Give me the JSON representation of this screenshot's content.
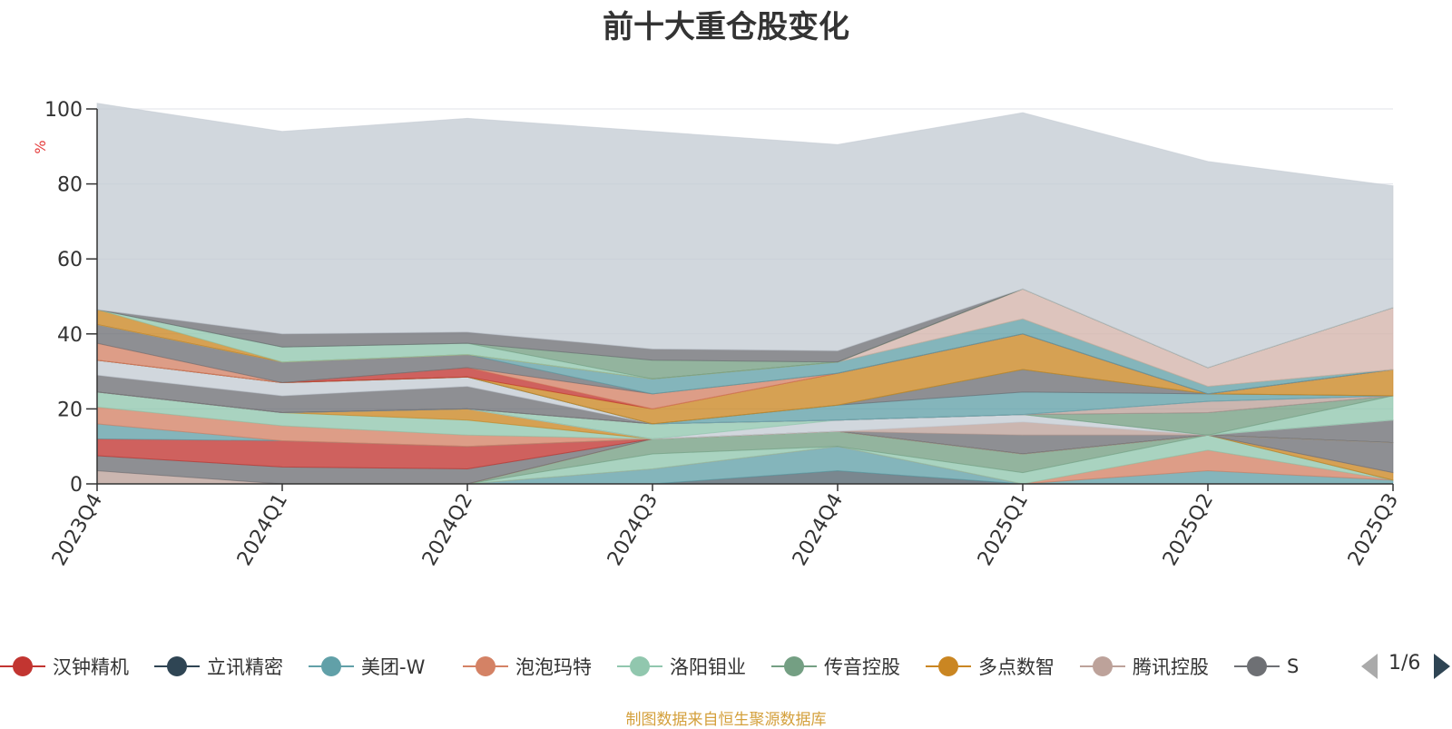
{
  "chart_data": {
    "type": "area",
    "title": "前十大重仓股变化",
    "ylabel": "%",
    "xlabel": "",
    "ylim": [
      0,
      100
    ],
    "yticks": [
      "0",
      "20",
      "40",
      "60",
      "80",
      "100"
    ],
    "categories": [
      "2023Q4",
      "2024Q1",
      "2024Q2",
      "2024Q3",
      "2024Q4",
      "2025Q1",
      "2025Q2",
      "2025Q3"
    ],
    "stacked": true,
    "grid": true,
    "legend_position": "bottom",
    "series": [
      {
        "name": "",
        "color": "#546570",
        "values": [
          0,
          0,
          0,
          0,
          3.5,
          0,
          0,
          0
        ]
      },
      {
        "name": "",
        "color": "#61a0a8",
        "values": [
          0,
          0,
          0,
          4,
          6.5,
          0,
          3.5,
          1
        ]
      },
      {
        "name": "",
        "color": "#d48265",
        "values": [
          0,
          0,
          0,
          0,
          0,
          0,
          5.5,
          0
        ]
      },
      {
        "name": "",
        "color": "#91c7ae",
        "values": [
          0,
          0,
          0,
          4,
          0,
          3,
          4,
          0
        ]
      },
      {
        "name": "",
        "color": "#749f83",
        "values": [
          0,
          0,
          0,
          4,
          4,
          5,
          0,
          0
        ]
      },
      {
        "name": "",
        "color": "#ca8622",
        "values": [
          0,
          0,
          0,
          0,
          0,
          0,
          0,
          2
        ]
      },
      {
        "name": "",
        "color": "#bda29a",
        "values": [
          3.5,
          0,
          0,
          0,
          0,
          0,
          0,
          0
        ]
      },
      {
        "name": "",
        "color": "#6e7074",
        "values": [
          4,
          4.5,
          4,
          0,
          0,
          0,
          0,
          8
        ]
      },
      {
        "name": "",
        "color": "#c23531",
        "values": [
          4.5,
          7,
          6,
          0,
          0,
          0,
          0,
          0
        ]
      },
      {
        "name": "",
        "color": "#61a0a8",
        "values": [
          4,
          0,
          0,
          0,
          0,
          0,
          0,
          0
        ]
      },
      {
        "name": "",
        "color": "#d48265",
        "values": [
          4.5,
          4,
          3,
          0,
          0,
          0,
          0,
          0
        ]
      },
      {
        "name": "",
        "color": "#91c7ae",
        "values": [
          4,
          3.5,
          4,
          0,
          0,
          0,
          0,
          0
        ]
      },
      {
        "name": "",
        "color": "#ca8622",
        "values": [
          0,
          0,
          3,
          0,
          0,
          0,
          0,
          0
        ]
      },
      {
        "name": "",
        "color": "#c4ccd3",
        "values": [
          0,
          0,
          0,
          0,
          0,
          0,
          0,
          0
        ]
      },
      {
        "name": "",
        "color": "#6e7074",
        "values": [
          0,
          0,
          0,
          0,
          0,
          5,
          0,
          6
        ]
      },
      {
        "name": "",
        "color": "#bda29a",
        "values": [
          0,
          0,
          0,
          0,
          0,
          3.5,
          0,
          0
        ]
      },
      {
        "name": "",
        "color": "#c4ccd3",
        "values": [
          0,
          0,
          0,
          0,
          3,
          2,
          0,
          0
        ]
      },
      {
        "name": "",
        "color": "#91c7ae",
        "values": [
          0,
          0,
          0,
          4,
          0,
          0,
          0,
          6.5
        ]
      },
      {
        "name": "",
        "color": "#749f83",
        "values": [
          0,
          0,
          0,
          0,
          0,
          0,
          6,
          0
        ]
      },
      {
        "name": "",
        "color": "#546570",
        "values": [
          0,
          0,
          0,
          0,
          0,
          0,
          0,
          0
        ]
      },
      {
        "name": "",
        "color": "#bda29a",
        "values": [
          0,
          0,
          0,
          0,
          0,
          0,
          3,
          0
        ]
      },
      {
        "name": "",
        "color": "#6e7074",
        "values": [
          4.5,
          4.5,
          6,
          0,
          0,
          0,
          0,
          0
        ]
      },
      {
        "name": "",
        "color": "#c4ccd3",
        "values": [
          4,
          3.5,
          2.5,
          0,
          0,
          0,
          0,
          0
        ]
      },
      {
        "name": "",
        "color": "#61a0a8",
        "values": [
          0,
          0,
          0,
          0,
          4,
          6,
          2,
          0
        ]
      },
      {
        "name": "",
        "color": "#6e7074",
        "values": [
          0,
          0,
          0,
          0,
          0,
          6,
          0,
          0
        ]
      },
      {
        "name": "",
        "color": "#749f83",
        "values": [
          0,
          0,
          0,
          0,
          0,
          0,
          0,
          0
        ]
      },
      {
        "name": "",
        "color": "#ca8622",
        "values": [
          0,
          0,
          0,
          4,
          8.5,
          9.5,
          0,
          7
        ]
      },
      {
        "name": "",
        "color": "#c23531",
        "values": [
          0,
          0,
          2.5,
          0,
          0,
          0,
          0,
          0
        ]
      },
      {
        "name": "",
        "color": "#d48265",
        "values": [
          4.5,
          0,
          0,
          4,
          0,
          0,
          0,
          0
        ]
      },
      {
        "name": "",
        "color": "#6e7074",
        "values": [
          5,
          5.5,
          3.5,
          0,
          0,
          0,
          0,
          0
        ]
      },
      {
        "name": "",
        "color": "#61a0a8",
        "values": [
          0,
          0,
          0,
          4,
          3,
          4,
          2,
          0
        ]
      },
      {
        "name": "",
        "color": "#91c7ae",
        "values": [
          0,
          0,
          0,
          0,
          0,
          0,
          0,
          0
        ]
      },
      {
        "name": "",
        "color": "#749f83",
        "values": [
          0,
          0,
          0,
          0,
          0,
          0,
          0,
          0
        ]
      },
      {
        "name": "",
        "color": "#d4b3ab",
        "values": [
          0,
          0,
          0,
          0,
          0,
          8,
          5,
          16.5
        ]
      },
      {
        "name": "",
        "color": "#ca8622",
        "values": [
          4,
          0,
          0,
          0,
          0,
          0,
          0,
          0
        ]
      },
      {
        "name": "",
        "color": "#91c7ae",
        "values": [
          0,
          4,
          3,
          0,
          0,
          0,
          0,
          0
        ]
      },
      {
        "name": "",
        "color": "#749f83",
        "values": [
          0,
          0,
          0,
          5,
          0,
          0,
          0,
          0
        ]
      },
      {
        "name": "",
        "color": "#6e7074",
        "values": [
          0,
          3.5,
          3,
          3,
          3,
          0,
          0,
          0
        ]
      },
      {
        "name": "",
        "color": "#c4ccd3",
        "values": [
          55,
          54,
          57,
          58,
          55,
          47,
          55,
          32.5
        ]
      }
    ]
  },
  "legend": {
    "items": [
      {
        "label": "汉钟精机",
        "color": "#c23531"
      },
      {
        "label": "立讯精密",
        "color": "#2f4554"
      },
      {
        "label": "美团-W",
        "color": "#61a0a8"
      },
      {
        "label": "泡泡玛特",
        "color": "#d48265"
      },
      {
        "label": "洛阳钼业",
        "color": "#91c7ae"
      },
      {
        "label": "传音控股",
        "color": "#749f83"
      },
      {
        "label": "多点数智",
        "color": "#ca8622"
      },
      {
        "label": "腾讯控股",
        "color": "#bda29a"
      },
      {
        "label": "S",
        "color": "#6e7074"
      }
    ],
    "page": "1/6"
  },
  "source_note": "制图数据来自恒生聚源数据库"
}
